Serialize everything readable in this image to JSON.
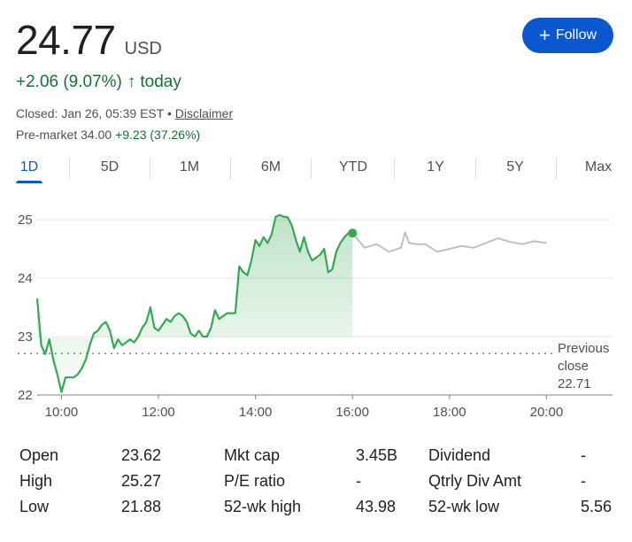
{
  "quote": {
    "price": "24.77",
    "currency": "USD",
    "change": "+2.06 (9.07%)",
    "change_arrow": "arrow-up-icon",
    "change_period": "today",
    "closed_label": "Closed: Jan 26, 05:39 EST",
    "bullet": "•",
    "disclaimer": "Disclaimer",
    "premarket_label": "Pre-market 34.00",
    "premarket_change": "+9.23 (37.26%)"
  },
  "follow_button": {
    "icon": "plus-icon",
    "label": "Follow"
  },
  "tabs": [
    {
      "label": "1D",
      "active": true
    },
    {
      "label": "5D"
    },
    {
      "label": "1M"
    },
    {
      "label": "6M"
    },
    {
      "label": "YTD"
    },
    {
      "label": "1Y"
    },
    {
      "label": "5Y"
    },
    {
      "label": "Max"
    }
  ],
  "colors": {
    "positive": "#137333",
    "line_green": "#34a853",
    "premarket_line": "#bdc1c6",
    "accent": "#0b57d0"
  },
  "chart_data": {
    "type": "line",
    "y_ticks": [
      "22",
      "23",
      "24",
      "25"
    ],
    "x_ticks": [
      "10:00",
      "12:00",
      "14:00",
      "16:00",
      "18:00",
      "20:00"
    ],
    "ylim": [
      22,
      25.1
    ],
    "previous_close": {
      "label_lines": [
        "Previous",
        "close",
        "22.71"
      ],
      "value": 22.71
    },
    "series": [
      {
        "session": "regular",
        "x": [
          "9:30",
          "9:35",
          "9:40",
          "9:45",
          "9:50",
          "9:55",
          "10:00",
          "10:05",
          "10:10",
          "10:15",
          "10:20",
          "10:25",
          "10:30",
          "10:35",
          "10:40",
          "10:45",
          "10:50",
          "10:55",
          "11:00",
          "11:05",
          "11:10",
          "11:15",
          "11:20",
          "11:25",
          "11:30",
          "11:35",
          "11:40",
          "11:45",
          "11:50",
          "11:55",
          "12:00",
          "12:05",
          "12:10",
          "12:15",
          "12:20",
          "12:25",
          "12:30",
          "12:35",
          "12:40",
          "12:45",
          "12:50",
          "12:55",
          "13:00",
          "13:05",
          "13:10",
          "13:15",
          "13:20",
          "13:25",
          "13:30",
          "13:35",
          "13:40",
          "13:45",
          "13:50",
          "13:55",
          "14:00",
          "14:05",
          "14:10",
          "14:15",
          "14:20",
          "14:25",
          "14:30",
          "14:35",
          "14:40",
          "14:45",
          "14:50",
          "14:55",
          "15:00",
          "15:05",
          "15:10",
          "15:15",
          "15:20",
          "15:25",
          "15:30",
          "15:35",
          "15:40",
          "15:45",
          "15:50",
          "15:55",
          "16:00"
        ],
        "y": [
          23.65,
          22.85,
          22.7,
          22.95,
          22.6,
          22.35,
          22.05,
          22.3,
          22.3,
          22.3,
          22.35,
          22.45,
          22.6,
          22.85,
          23.05,
          23.1,
          23.2,
          23.25,
          23.1,
          22.8,
          22.95,
          22.85,
          22.9,
          22.95,
          22.9,
          23.0,
          23.15,
          23.25,
          23.5,
          23.15,
          23.1,
          23.2,
          23.3,
          23.25,
          23.35,
          23.4,
          23.35,
          23.25,
          23.05,
          23.0,
          23.1,
          23.0,
          23.0,
          23.15,
          23.45,
          23.3,
          23.35,
          23.4,
          23.4,
          23.4,
          24.2,
          24.1,
          24.05,
          24.3,
          24.65,
          24.55,
          24.7,
          24.6,
          24.75,
          25.05,
          25.08,
          25.05,
          25.04,
          24.9,
          24.65,
          24.45,
          24.7,
          24.45,
          24.3,
          24.35,
          24.4,
          24.5,
          24.1,
          24.15,
          24.45,
          24.6,
          24.7,
          24.77,
          24.77
        ]
      },
      {
        "session": "after-hours",
        "x": [
          "16:00",
          "16:15",
          "16:30",
          "16:45",
          "17:00",
          "17:05",
          "17:10",
          "17:20",
          "17:30",
          "17:45",
          "18:00",
          "18:15",
          "18:30",
          "18:45",
          "19:00",
          "19:15",
          "19:30",
          "19:45",
          "20:00"
        ],
        "y": [
          24.77,
          24.52,
          24.58,
          24.45,
          24.52,
          24.78,
          24.6,
          24.58,
          24.58,
          24.45,
          24.5,
          24.55,
          24.52,
          24.6,
          24.68,
          24.62,
          24.58,
          24.63,
          24.6
        ]
      }
    ]
  },
  "stats": {
    "open_label": "Open",
    "open": "23.62",
    "high_label": "High",
    "high": "25.27",
    "low_label": "Low",
    "low": "21.88",
    "mktcap_label": "Mkt cap",
    "mktcap": "3.45B",
    "pe_label": "P/E ratio",
    "pe": "-",
    "wkhigh_label": "52-wk high",
    "wkhigh": "43.98",
    "dividend_label": "Dividend",
    "dividend": "-",
    "qdiv_label": "Qtrly Div Amt",
    "qdiv": "-",
    "wklow_label": "52-wk low",
    "wklow": "5.56"
  }
}
